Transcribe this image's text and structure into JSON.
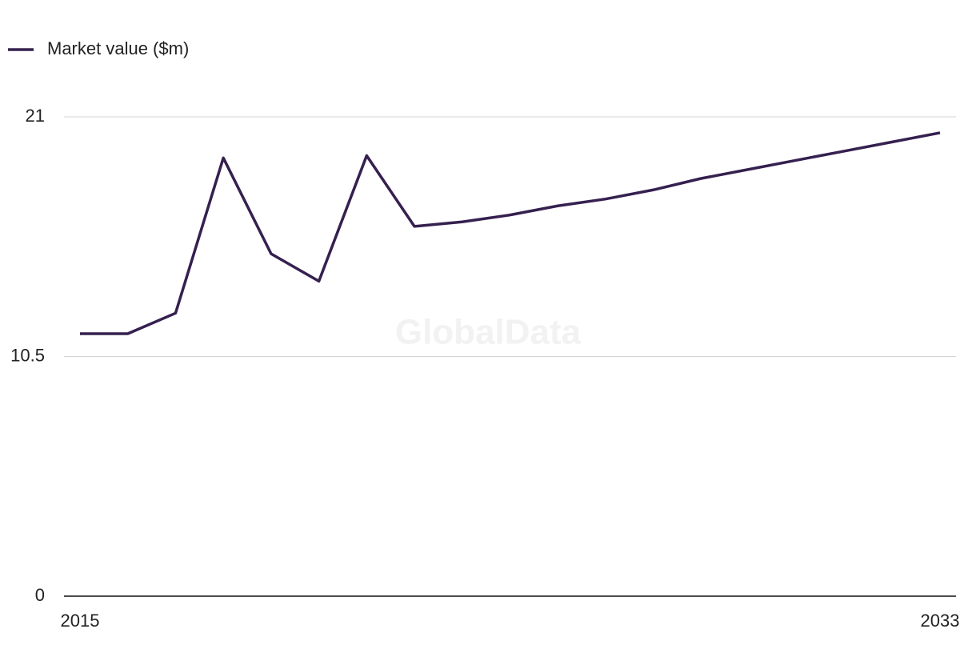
{
  "chart_data": {
    "type": "line",
    "legend_position": "top-left",
    "watermark": "GlobalData",
    "x": [
      2015,
      2016,
      2017,
      2018,
      2019,
      2020,
      2021,
      2022,
      2023,
      2024,
      2025,
      2026,
      2027,
      2028,
      2029,
      2030,
      2031,
      2032,
      2033
    ],
    "xlim": [
      2015,
      2033
    ],
    "xticks": [
      2015,
      2033
    ],
    "ylim": [
      0,
      21
    ],
    "yticks": [
      0,
      10.5,
      21
    ],
    "grid": true,
    "series": [
      {
        "name": "Market value ($m)",
        "color": "#35204f",
        "values": [
          11.5,
          11.5,
          12.4,
          19.2,
          15.0,
          13.8,
          19.3,
          16.2,
          16.4,
          16.7,
          17.1,
          17.4,
          17.8,
          18.3,
          18.7,
          19.1,
          19.5,
          19.9,
          20.3
        ]
      }
    ]
  }
}
